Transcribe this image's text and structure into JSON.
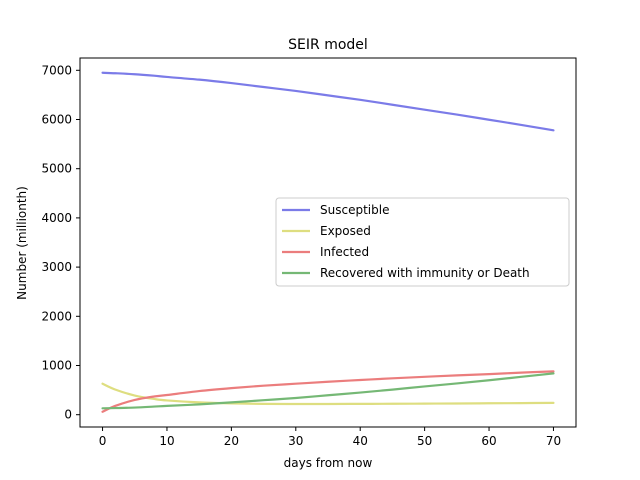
{
  "chart_data": {
    "type": "line",
    "title": "SEIR model",
    "xlabel": "days from now",
    "ylabel": "Number (millionth)",
    "xlim": [
      -3.5,
      73.5
    ],
    "ylim": [
      -250,
      7250
    ],
    "xticks": [
      0,
      10,
      20,
      30,
      40,
      50,
      60,
      70
    ],
    "yticks": [
      0,
      1000,
      2000,
      3000,
      4000,
      5000,
      6000,
      7000
    ],
    "grid": false,
    "legend_position": "center-right",
    "x": [
      0,
      2,
      5,
      8,
      10,
      15,
      20,
      25,
      30,
      35,
      40,
      45,
      50,
      55,
      60,
      65,
      70
    ],
    "series": [
      {
        "name": "Susceptible",
        "color": "#7b7be8",
        "values": [
          6950,
          6940,
          6920,
          6890,
          6865,
          6810,
          6740,
          6660,
          6580,
          6490,
          6400,
          6300,
          6200,
          6100,
          5995,
          5890,
          5780
        ]
      },
      {
        "name": "Exposed",
        "color": "#dede80",
        "values": [
          630,
          510,
          390,
          320,
          290,
          250,
          230,
          220,
          218,
          218,
          220,
          222,
          225,
          228,
          232,
          236,
          240
        ]
      },
      {
        "name": "Infected",
        "color": "#eb7d7d",
        "values": [
          60,
          180,
          300,
          370,
          400,
          480,
          540,
          590,
          630,
          670,
          705,
          740,
          770,
          800,
          825,
          855,
          880
        ]
      },
      {
        "name": "Recovered with immunity or Death",
        "color": "#75b875",
        "values": [
          130,
          135,
          145,
          165,
          180,
          210,
          250,
          295,
          340,
          395,
          450,
          510,
          575,
          635,
          700,
          770,
          840
        ]
      }
    ]
  }
}
